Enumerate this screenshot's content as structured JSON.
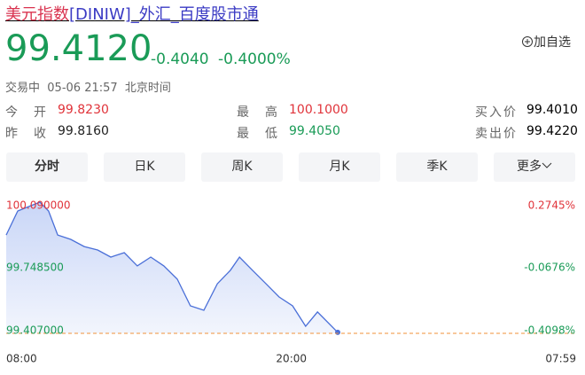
{
  "header": {
    "title_name": "美元指数",
    "title_rest": "[DINIW]_外汇_百度股市通",
    "price": "99.4120",
    "change": "-0.4040",
    "change_pct": "-0.4000%",
    "add_watch": "加自选",
    "status": "交易中",
    "time": "05-06 21:57",
    "timezone": "北京时间"
  },
  "quote": {
    "rows": [
      [
        {
          "label": "今　开",
          "value": "99.8230"
        },
        {
          "label": "最　高",
          "value": "100.1000"
        },
        {
          "label": "买入价",
          "value": "99.4010"
        }
      ],
      [
        {
          "label": "昨　收",
          "value": "99.8160"
        },
        {
          "label": "最　低",
          "value": "99.4050"
        },
        {
          "label": "卖出价",
          "value": "99.4220"
        }
      ]
    ]
  },
  "tabs": [
    "分时",
    "日K",
    "周K",
    "月K",
    "季K",
    "更多"
  ],
  "chart_data": {
    "type": "line",
    "x": [
      0,
      29,
      63,
      85,
      107,
      130,
      163,
      197,
      231,
      264,
      298,
      331,
      365,
      398,
      432,
      465,
      499,
      533,
      566,
      589,
      622,
      656,
      689,
      723,
      756,
      786,
      837
    ],
    "series": [
      {
        "color": "#4a6fd8",
        "values": [
          99.919,
          100.044,
          100.072,
          100.09,
          100.044,
          99.919,
          99.896,
          99.859,
          99.841,
          99.804,
          99.827,
          99.758,
          99.804,
          99.758,
          99.689,
          99.55,
          99.527,
          99.665,
          99.735,
          99.804,
          99.735,
          99.665,
          99.596,
          99.55,
          99.444,
          99.518,
          99.412
        ]
      }
    ],
    "xlim": [
      0,
      1439
    ],
    "xticks": [
      {
        "value": 0,
        "label": "08:00"
      },
      {
        "value": 720,
        "label": "20:00"
      },
      {
        "value": 1439,
        "label": "07:59"
      }
    ],
    "ylim": [
      99.407,
      100.09
    ],
    "yticks": [
      {
        "value": 100.09,
        "label": "100.090000"
      },
      {
        "value": 99.7485,
        "label": "99.748500"
      },
      {
        "value": 99.407,
        "label": "99.407000"
      }
    ],
    "y2lim": [
      -0.4098,
      0.2745
    ],
    "y2ticks": [
      {
        "value": 0.2745,
        "label": "0.2745%"
      },
      {
        "value": -0.0676,
        "label": "-0.0676%"
      },
      {
        "value": -0.4098,
        "label": "-0.4098%"
      }
    ]
  }
}
